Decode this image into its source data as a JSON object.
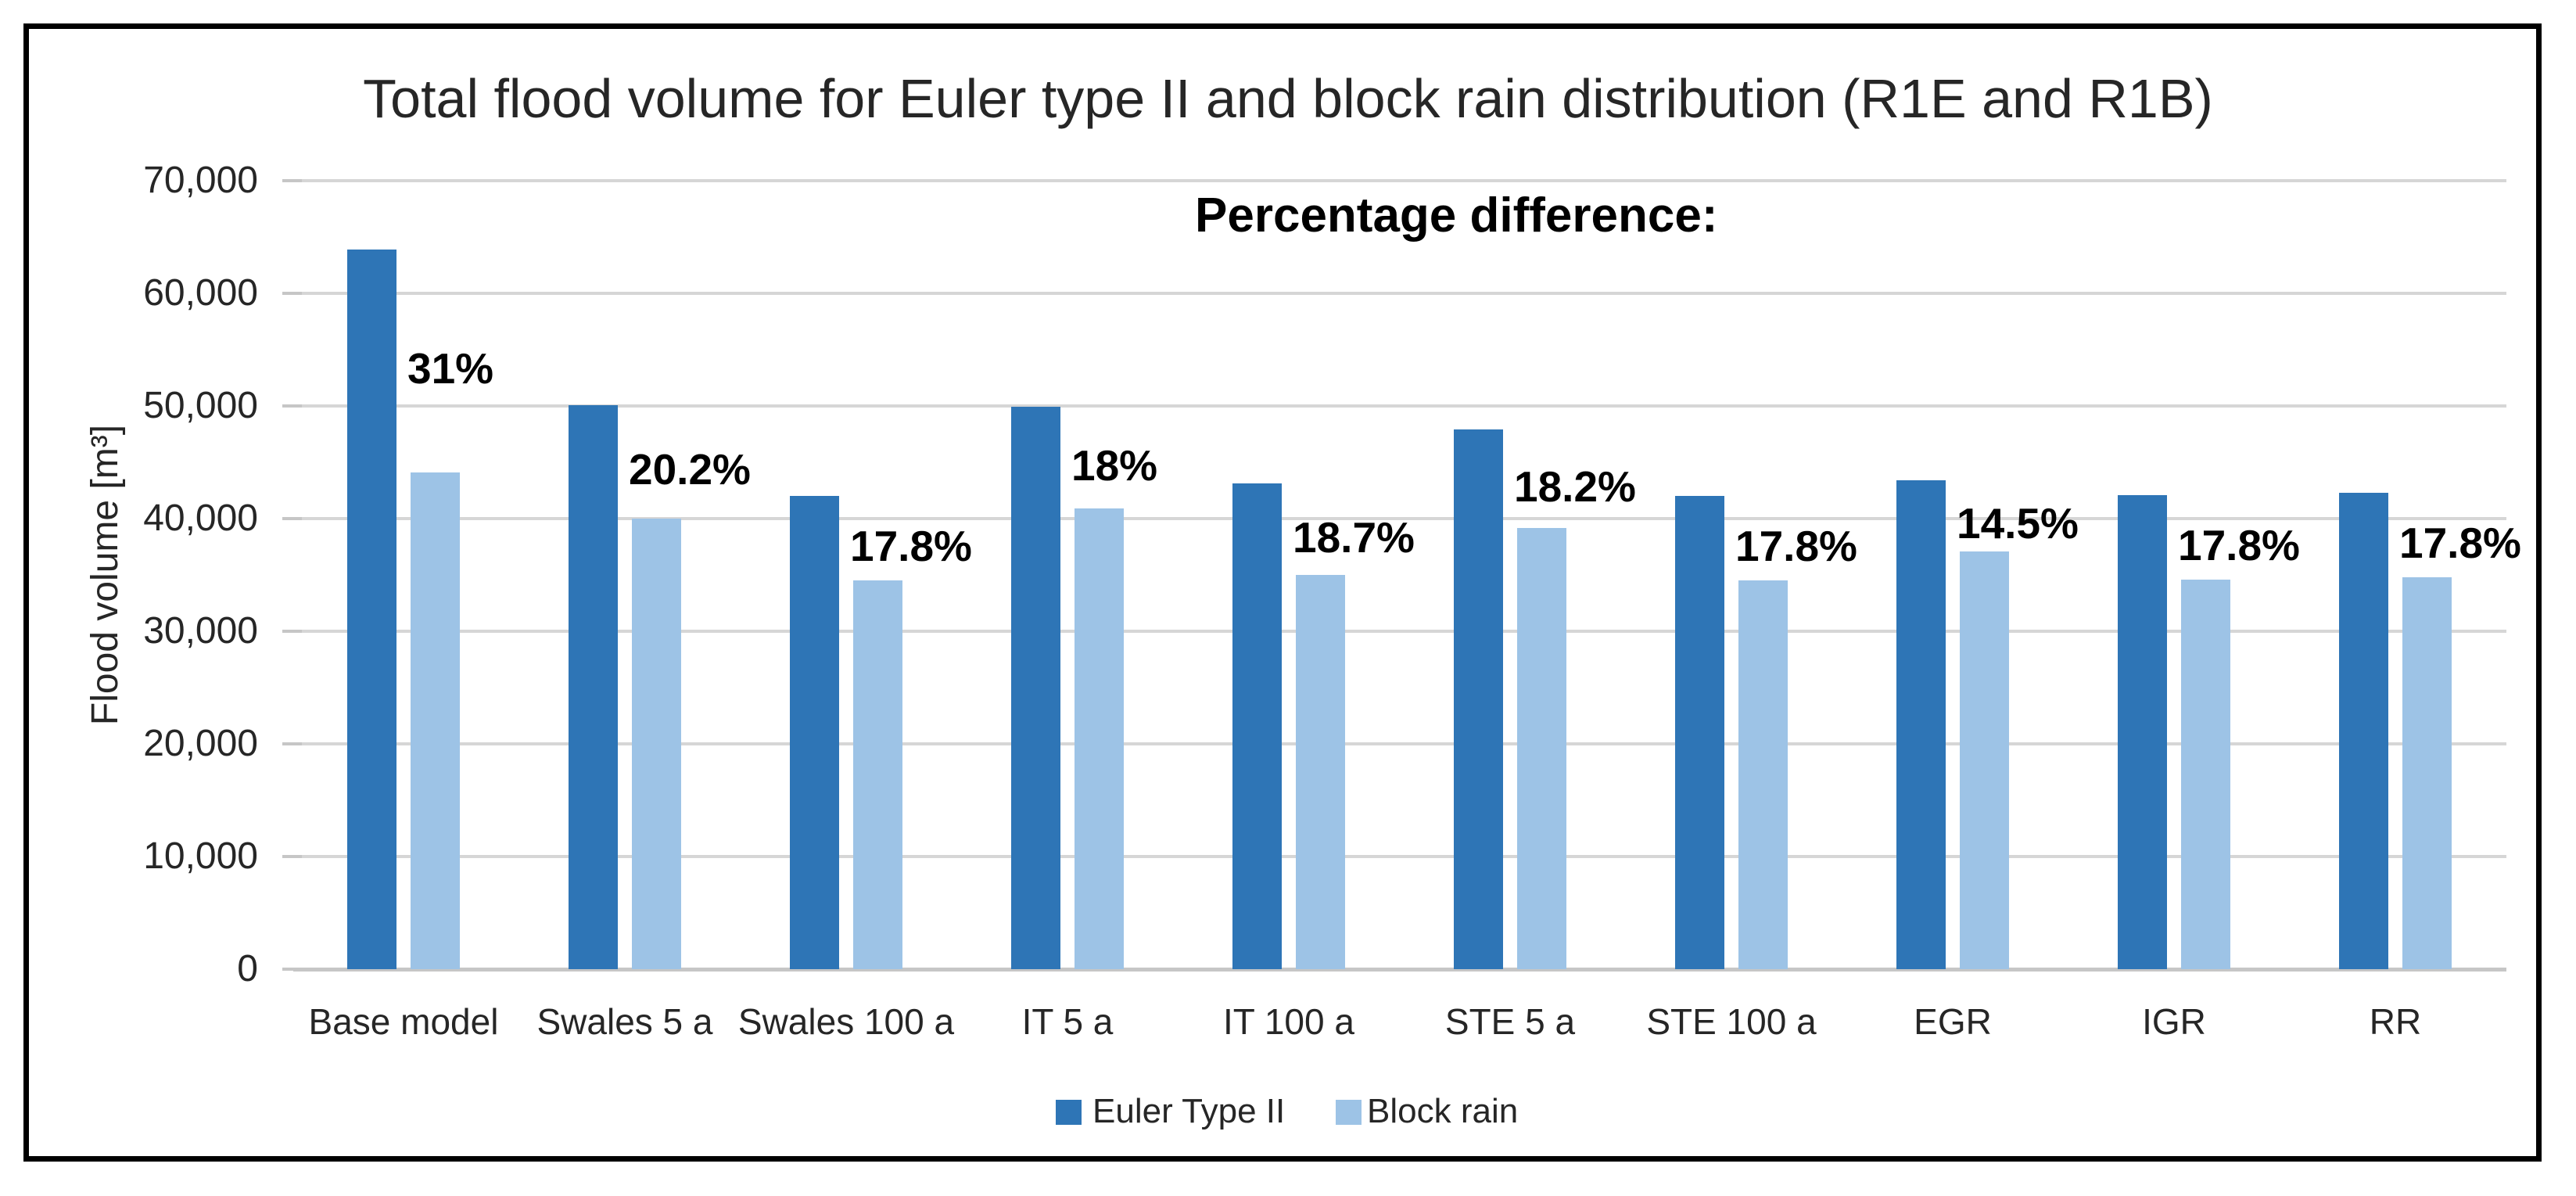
{
  "chart": {
    "title": "Total flood volume for Euler type II and block rain distribution (R1E and R1B)",
    "annotation": "Percentage difference:",
    "y_axis_title": "Flood volume [m³]"
  },
  "colors": {
    "euler_blue": "#2E75B6",
    "block_blue": "#9DC3E6",
    "gridline": "#D6D6D6",
    "axis_line": "#C6C6C6",
    "text": "#262626",
    "frame_border": "#000000"
  },
  "chart_data": {
    "type": "bar",
    "title": "Total flood volume for Euler type II and block rain distribution (R1E and R1B)",
    "annotation": "Percentage difference:",
    "xlabel": "",
    "ylabel": "Flood volume [m³]",
    "ylim": [
      0,
      70000
    ],
    "ytick_interval": 10000,
    "ytick_labels": [
      "0",
      "10,000",
      "20,000",
      "30,000",
      "40,000",
      "50,000",
      "60,000",
      "70,000"
    ],
    "categories": [
      "Base model",
      "Swales 5 a",
      "Swales 100 a",
      "IT 5 a",
      "IT 100 a",
      "STE 5 a",
      "STE 100 a",
      "EGR",
      "IGR",
      "RR"
    ],
    "series": [
      {
        "name": "Euler Type II",
        "color": "#2E75B6",
        "values": [
          63900,
          50100,
          42000,
          49900,
          43100,
          47900,
          42000,
          43400,
          42100,
          42300
        ]
      },
      {
        "name": "Block rain",
        "color": "#9DC3E6",
        "values": [
          44100,
          40000,
          34500,
          40900,
          35000,
          39200,
          34500,
          37100,
          34600,
          34800
        ]
      }
    ],
    "data_labels": [
      "31%",
      "20.2%",
      "17.8%",
      "18%",
      "18.7%",
      "18.2%",
      "17.8%",
      "14.5%",
      "17.8%",
      "17.8%"
    ],
    "legend_position": "bottom",
    "grid": true
  }
}
